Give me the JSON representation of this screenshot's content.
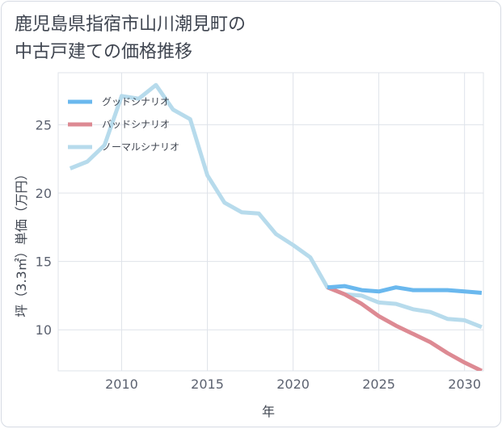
{
  "title": "鹿児島県指宿市山川潮見町の\n中古戸建ての価格推移",
  "chart_data": {
    "type": "line",
    "xlabel": "年",
    "ylabel": "坪（3.3㎡）単価（万円）",
    "xlim": [
      2006.3,
      2031.1
    ],
    "ylim": [
      7.0,
      28.8
    ],
    "xticks": [
      2010,
      2015,
      2020,
      2025,
      2030
    ],
    "yticks": [
      10,
      15,
      20,
      25
    ],
    "grid": true,
    "legend_position": "top-left",
    "series": [
      {
        "name": "グッドシナリオ",
        "color": "#6ab8ee",
        "x": [
          2022,
          2023,
          2024,
          2025,
          2026,
          2027,
          2028,
          2029,
          2030,
          2031
        ],
        "y": [
          13.1,
          13.2,
          12.9,
          12.8,
          13.1,
          12.9,
          12.9,
          12.9,
          12.8,
          12.7
        ]
      },
      {
        "name": "バッドシナリオ",
        "color": "#dd8a93",
        "x": [
          2022,
          2023,
          2024,
          2025,
          2026,
          2027,
          2028,
          2029,
          2030,
          2031
        ],
        "y": [
          13.1,
          12.6,
          11.9,
          11.0,
          10.3,
          9.7,
          9.1,
          8.3,
          7.6,
          7.0
        ]
      },
      {
        "name": "ノーマルシナリオ",
        "color": "#b7dbec",
        "x": [
          2007,
          2008,
          2009,
          2010,
          2011,
          2012,
          2013,
          2014,
          2015,
          2016,
          2017,
          2018,
          2019,
          2020,
          2021,
          2022,
          2023,
          2024,
          2025,
          2026,
          2027,
          2028,
          2029,
          2030,
          2031
        ],
        "y": [
          21.8,
          22.3,
          23.5,
          27.1,
          26.9,
          27.9,
          26.1,
          25.4,
          21.3,
          19.3,
          18.6,
          18.5,
          17.0,
          16.2,
          15.3,
          13.1,
          12.6,
          12.5,
          12.0,
          11.9,
          11.5,
          11.3,
          10.8,
          10.7,
          10.2
        ]
      }
    ]
  }
}
